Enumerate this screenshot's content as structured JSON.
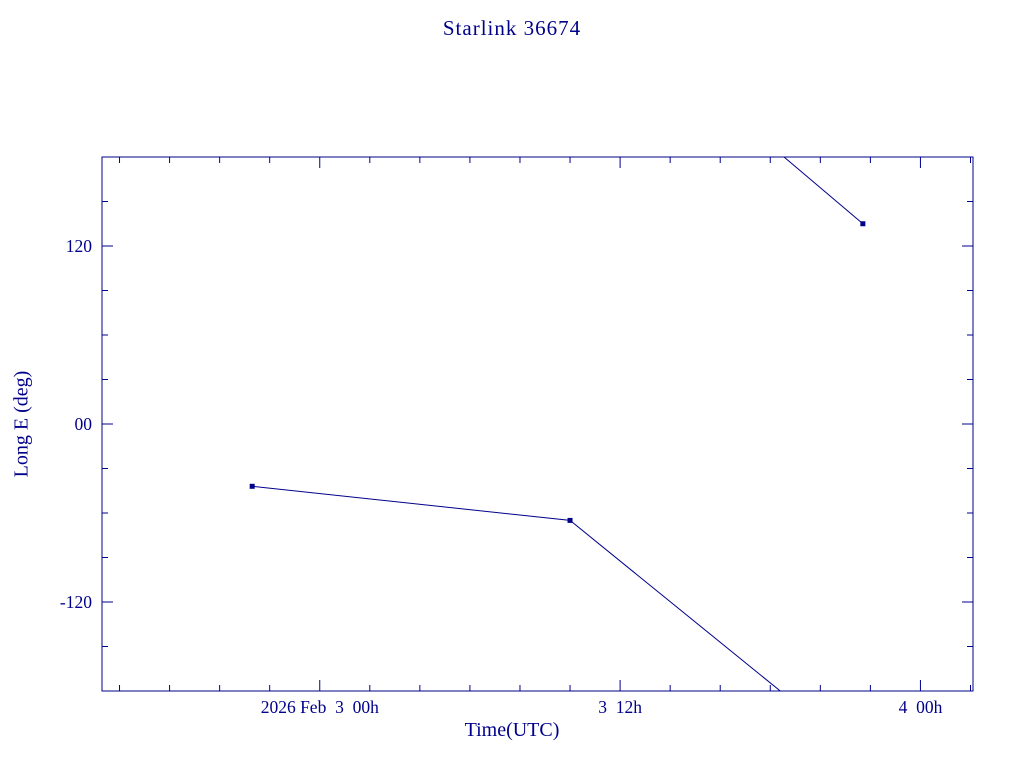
{
  "title": "Starlink 36674",
  "colors": {
    "ink": "#00008B",
    "background": "#FFFFFF"
  },
  "chart_data": {
    "type": "line",
    "title": "Starlink 36674",
    "xlabel": "Time(UTC)",
    "ylabel": "Long E (deg)",
    "x_units": "hours relative to 2026 Feb 3 00h UTC (from visible tick labels)",
    "xlim": [
      -8.7,
      26.1
    ],
    "ylim": [
      -180,
      180
    ],
    "grid": false,
    "legend": false,
    "x_major_ticks": [
      {
        "x": 0,
        "label": "2026 Feb  3  00h"
      },
      {
        "x": 12,
        "label": "3  12h"
      },
      {
        "x": 24,
        "label": "4  00h"
      }
    ],
    "x_minor_step": 2,
    "y_major_ticks": [
      {
        "y": 120,
        "label": "120"
      },
      {
        "y": 0,
        "label": "00"
      },
      {
        "y": -120,
        "label": "-120"
      }
    ],
    "y_minor_step": 30,
    "series": [
      {
        "name": "longitude track",
        "color": "#00008B",
        "marker": "filled-square",
        "segments": [
          {
            "points": [
              [
                -2.7,
                -42
              ],
              [
                10.0,
                -65
              ],
              [
                18.4,
                -180
              ]
            ]
          },
          {
            "points": [
              [
                18.55,
                180
              ],
              [
                21.7,
                135
              ]
            ]
          }
        ],
        "markers_at": [
          [
            -2.7,
            -42
          ],
          [
            10.0,
            -65
          ],
          [
            21.7,
            135
          ]
        ]
      }
    ]
  }
}
